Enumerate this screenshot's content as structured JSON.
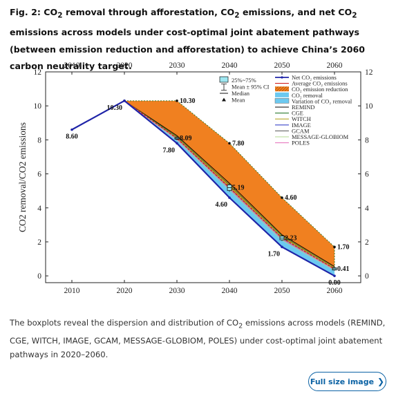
{
  "figure": {
    "title_html": "Fig. 2: CO<sub>2</sub> removal through afforestation, CO<sub>2</sub> emissions, and net CO<sub>2</sub> emissions across models under cost-optimal joint abatement pathways (between emission reduction and afforestation) to achieve China’s 2060 carbon neutrality target.",
    "description_html": "The boxplots reveal the dispersion and distribution of CO<sub>2</sub> emissions across models (REMIND, CGE, WITCH, IMAGE, GCAM, MESSAGE-GLOBIOM, POLES) under cost-optimal joint abatement pathways in 2020–2060.",
    "button_label": "Full size image",
    "button_icon": "chevron-right-icon"
  },
  "colors": {
    "net": "#1f24a8",
    "reduction": "#f08020",
    "removal": "#6cc9f0",
    "average": "#d02020",
    "remind": "#000000",
    "cge": "#2e7d32",
    "witch": "#b5a62a",
    "image": "#3a44c8",
    "gcam": "#666666",
    "message": "#b0d890",
    "poles": "#e87ac0",
    "box": "#9ee6f0",
    "link": "#0b62a4"
  },
  "chart_data": {
    "type": "line",
    "ylabel": "CO2 removal/CO2 emissions",
    "xlabel": "",
    "xlim": [
      2005,
      2065
    ],
    "ylim": [
      -0.4,
      12
    ],
    "x_ticks": [
      2010,
      2020,
      2030,
      2040,
      2050,
      2060
    ],
    "y_ticks": [
      0,
      2,
      4,
      6,
      8,
      10,
      12
    ],
    "grid": false,
    "legend_position": "top-right",
    "series": [
      {
        "name": "Net CO₂ emissions",
        "x": [
          2010,
          2020,
          2030,
          2040,
          2050,
          2060
        ],
        "values": [
          8.6,
          10.3,
          7.8,
          4.6,
          1.7,
          0.0
        ]
      },
      {
        "name": "Average CO₂ emissions",
        "x": [
          2020,
          2030,
          2040,
          2050,
          2060
        ],
        "values": [
          10.3,
          8.09,
          5.19,
          2.23,
          0.41
        ]
      },
      {
        "name": "CO₂ emission reduction",
        "x": [
          2020,
          2030,
          2040,
          2050,
          2060
        ],
        "upper": [
          10.3,
          10.3,
          7.8,
          4.6,
          1.7
        ],
        "lower": [
          10.3,
          8.09,
          5.19,
          2.23,
          0.41
        ]
      },
      {
        "name": "CO₂ removal",
        "x": [
          2020,
          2030,
          2040,
          2050,
          2060
        ],
        "upper": [
          10.3,
          8.09,
          5.19,
          2.23,
          0.41
        ],
        "lower": [
          10.3,
          7.8,
          4.6,
          1.7,
          0.0
        ]
      },
      {
        "name": "REMIND",
        "x": [
          2020,
          2030,
          2040,
          2050,
          2060
        ],
        "values": [
          10.3,
          8.25,
          5.45,
          2.42,
          0.55
        ]
      },
      {
        "name": "CGE",
        "x": [
          2020,
          2030,
          2040,
          2050,
          2060
        ],
        "values": [
          10.3,
          8.18,
          5.35,
          2.35,
          0.48
        ]
      },
      {
        "name": "WITCH",
        "x": [
          2020,
          2030,
          2040,
          2050,
          2060
        ],
        "values": [
          10.3,
          8.12,
          5.28,
          2.3,
          0.46
        ]
      },
      {
        "name": "IMAGE",
        "x": [
          2020,
          2030,
          2040,
          2050,
          2060
        ],
        "values": [
          10.3,
          8.02,
          5.1,
          2.15,
          0.36
        ]
      },
      {
        "name": "GCAM",
        "x": [
          2020,
          2030,
          2040,
          2050,
          2060
        ],
        "values": [
          10.3,
          8.05,
          5.14,
          2.18,
          0.38
        ]
      },
      {
        "name": "MESSAGE-GLOBIOM",
        "x": [
          2020,
          2030,
          2040,
          2050,
          2060
        ],
        "values": [
          10.3,
          8.0,
          5.06,
          2.1,
          0.33
        ]
      },
      {
        "name": "POLES",
        "x": [
          2020,
          2030,
          2040,
          2050,
          2060
        ],
        "values": [
          10.3,
          8.03,
          5.12,
          2.16,
          0.37
        ]
      }
    ],
    "boxplots": [
      {
        "x": 2030,
        "q1": 8.04,
        "q3": 8.14,
        "median": 8.09,
        "whisker_low": 7.98,
        "whisker_high": 8.2
      },
      {
        "x": 2040,
        "q1": 5.02,
        "q3": 5.36,
        "median": 5.19,
        "whisker_low": 4.95,
        "whisker_high": 5.45
      },
      {
        "x": 2050,
        "q1": 2.12,
        "q3": 2.34,
        "median": 2.23,
        "whisker_low": 2.05,
        "whisker_high": 2.42
      },
      {
        "x": 2060,
        "q1": 0.34,
        "q3": 0.48,
        "median": 0.41,
        "whisker_low": 0.3,
        "whisker_high": 0.55
      }
    ],
    "data_labels": [
      {
        "text": "8.60",
        "x": 2010,
        "y": 8.6,
        "pos": "below"
      },
      {
        "text": "10.30",
        "x": 2020,
        "y": 10.3,
        "pos": "below-left"
      },
      {
        "text": "10.30",
        "x": 2030,
        "y": 10.3,
        "pos": "right"
      },
      {
        "text": "8.09",
        "x": 2030,
        "y": 8.09,
        "pos": "right"
      },
      {
        "text": "7.80",
        "x": 2030,
        "y": 7.8,
        "pos": "below-left"
      },
      {
        "text": "7.80",
        "x": 2040,
        "y": 7.8,
        "pos": "right"
      },
      {
        "text": "5.19",
        "x": 2040,
        "y": 5.19,
        "pos": "right"
      },
      {
        "text": "4.60",
        "x": 2040,
        "y": 4.6,
        "pos": "below-left"
      },
      {
        "text": "4.60",
        "x": 2050,
        "y": 4.6,
        "pos": "right"
      },
      {
        "text": "2.23",
        "x": 2050,
        "y": 2.23,
        "pos": "right"
      },
      {
        "text": "1.70",
        "x": 2050,
        "y": 1.7,
        "pos": "below-left"
      },
      {
        "text": "1.70",
        "x": 2060,
        "y": 1.7,
        "pos": "right"
      },
      {
        "text": "0.41",
        "x": 2060,
        "y": 0.41,
        "pos": "right"
      },
      {
        "text": "0.00",
        "x": 2060,
        "y": 0.0,
        "pos": "below"
      }
    ],
    "legend_left": [
      {
        "label": "25%~75%",
        "kind": "box"
      },
      {
        "label": "Mean ± 95% CI",
        "kind": "errorbar"
      },
      {
        "label": "Median",
        "kind": "line"
      },
      {
        "label": "Mean",
        "kind": "triangle"
      }
    ],
    "legend_right": [
      {
        "label": "Net CO₂ emissions",
        "kind": "line-marker",
        "color_key": "net"
      },
      {
        "label": "Average CO₂ emissions",
        "kind": "line",
        "color_key": "average"
      },
      {
        "label": "CO₂ emission reduction",
        "kind": "swatch",
        "color_key": "reduction"
      },
      {
        "label": "CO₂ removal",
        "kind": "swatch",
        "color_key": "removal"
      },
      {
        "label": "Variation of CO₂ removal",
        "kind": "swatch-hatched",
        "color_key": "removal"
      },
      {
        "label": "REMIND",
        "kind": "line",
        "color_key": "remind"
      },
      {
        "label": "CGE",
        "kind": "line",
        "color_key": "cge"
      },
      {
        "label": "WITCH",
        "kind": "line",
        "color_key": "witch"
      },
      {
        "label": "IMAGE",
        "kind": "line",
        "color_key": "image"
      },
      {
        "label": "GCAM",
        "kind": "line",
        "color_key": "gcam"
      },
      {
        "label": "MESSAGE-GLOBIOM",
        "kind": "line",
        "color_key": "message"
      },
      {
        "label": "POLES",
        "kind": "line",
        "color_key": "poles"
      }
    ]
  }
}
